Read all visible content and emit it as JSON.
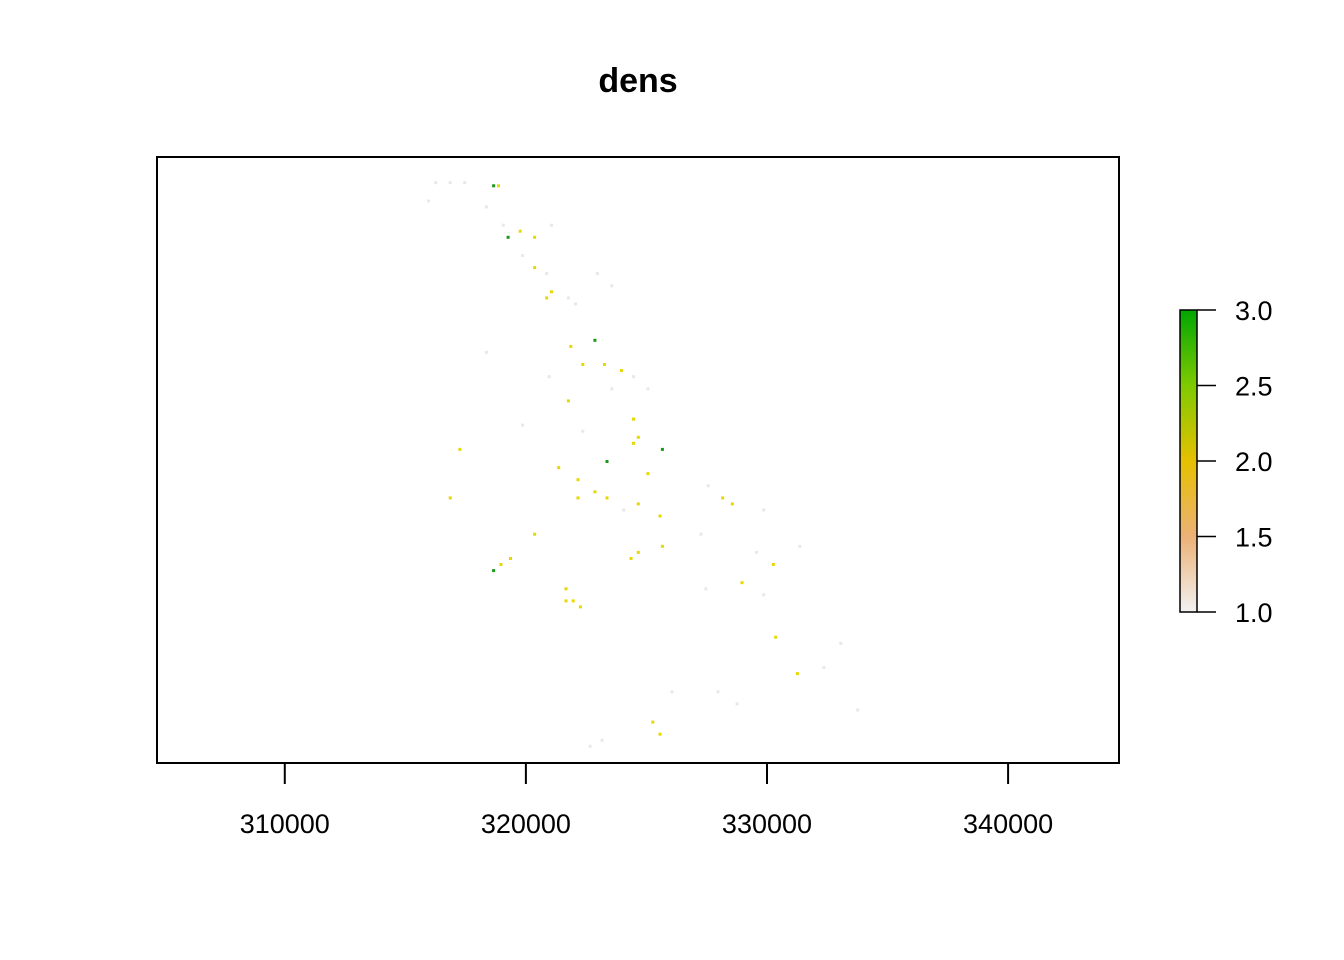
{
  "chart_data": {
    "type": "heatmap",
    "title": "dens",
    "xlabel": "",
    "ylabel": "",
    "xlim": [
      304700,
      344600
    ],
    "x_ticks": [
      310000,
      320000,
      330000,
      340000
    ],
    "x_tick_labels": [
      "310000",
      "320000",
      "330000",
      "340000"
    ],
    "grid": false,
    "legend": "right",
    "colorbar": {
      "min": 1.0,
      "max": 3.0,
      "ticks": [
        1.0,
        1.5,
        2.0,
        2.5,
        3.0
      ],
      "tick_labels": [
        "1.0",
        "1.5",
        "2.0",
        "2.5",
        "3.0"
      ],
      "colors": [
        "#f2f2f2",
        "#ecb176",
        "#e6c000",
        "#7fca00",
        "#00a600"
      ]
    },
    "colors": {
      "low": "#e8e8e8",
      "mid": "#e6d800",
      "high": "#1a9a1a"
    },
    "cells_note": "",
    "cells": [
      [
        316.2,
        0.96,
        1
      ],
      [
        316.8,
        0.96,
        1
      ],
      [
        317.4,
        0.96,
        1
      ],
      [
        315.9,
        0.93,
        1
      ],
      [
        318.6,
        0.955,
        3
      ],
      [
        318.8,
        0.955,
        2
      ],
      [
        318.3,
        0.92,
        1
      ],
      [
        319.0,
        0.89,
        1
      ],
      [
        319.2,
        0.87,
        3
      ],
      [
        319.7,
        0.88,
        2
      ],
      [
        320.3,
        0.87,
        2
      ],
      [
        321.0,
        0.89,
        1
      ],
      [
        319.8,
        0.84,
        1
      ],
      [
        320.3,
        0.82,
        2
      ],
      [
        320.8,
        0.81,
        1
      ],
      [
        321.0,
        0.78,
        2
      ],
      [
        320.8,
        0.77,
        2
      ],
      [
        321.7,
        0.77,
        1
      ],
      [
        322.9,
        0.81,
        1
      ],
      [
        323.5,
        0.79,
        1
      ],
      [
        322.0,
        0.76,
        1
      ],
      [
        322.8,
        0.7,
        3
      ],
      [
        321.8,
        0.69,
        2
      ],
      [
        322.3,
        0.66,
        2
      ],
      [
        323.2,
        0.66,
        2
      ],
      [
        323.9,
        0.65,
        2
      ],
      [
        324.4,
        0.64,
        1
      ],
      [
        325.0,
        0.62,
        1
      ],
      [
        323.5,
        0.62,
        1
      ],
      [
        321.7,
        0.6,
        2
      ],
      [
        322.3,
        0.55,
        1
      ],
      [
        324.4,
        0.57,
        2
      ],
      [
        324.6,
        0.54,
        2
      ],
      [
        324.4,
        0.53,
        2
      ],
      [
        325.6,
        0.52,
        3
      ],
      [
        323.3,
        0.5,
        3
      ],
      [
        325.0,
        0.48,
        2
      ],
      [
        321.3,
        0.49,
        2
      ],
      [
        322.1,
        0.47,
        2
      ],
      [
        322.8,
        0.45,
        2
      ],
      [
        322.1,
        0.44,
        2
      ],
      [
        323.3,
        0.44,
        2
      ],
      [
        324.6,
        0.43,
        2
      ],
      [
        325.5,
        0.41,
        2
      ],
      [
        324.0,
        0.42,
        1
      ],
      [
        328.1,
        0.44,
        2
      ],
      [
        328.5,
        0.43,
        2
      ],
      [
        327.5,
        0.46,
        1
      ],
      [
        329.8,
        0.42,
        1
      ],
      [
        320.3,
        0.38,
        2
      ],
      [
        325.6,
        0.36,
        2
      ],
      [
        324.3,
        0.34,
        2
      ],
      [
        324.6,
        0.35,
        2
      ],
      [
        330.2,
        0.33,
        2
      ],
      [
        329.5,
        0.35,
        1
      ],
      [
        318.6,
        0.32,
        3
      ],
      [
        318.9,
        0.33,
        2
      ],
      [
        319.3,
        0.34,
        2
      ],
      [
        321.6,
        0.29,
        2
      ],
      [
        321.6,
        0.27,
        2
      ],
      [
        321.9,
        0.27,
        2
      ],
      [
        322.2,
        0.26,
        2
      ],
      [
        328.9,
        0.3,
        2
      ],
      [
        327.4,
        0.29,
        1
      ],
      [
        329.8,
        0.28,
        1
      ],
      [
        330.3,
        0.21,
        2
      ],
      [
        331.2,
        0.15,
        2
      ],
      [
        316.8,
        0.44,
        2
      ],
      [
        317.2,
        0.52,
        2
      ],
      [
        326.0,
        0.12,
        1
      ],
      [
        325.2,
        0.07,
        2
      ],
      [
        325.5,
        0.05,
        2
      ],
      [
        327.9,
        0.12,
        1
      ],
      [
        328.7,
        0.1,
        1
      ],
      [
        333.7,
        0.09,
        1
      ],
      [
        323.1,
        0.04,
        1
      ],
      [
        322.6,
        0.03,
        1
      ],
      [
        319.8,
        0.56,
        1
      ],
      [
        318.3,
        0.68,
        1
      ],
      [
        320.9,
        0.64,
        1
      ],
      [
        327.2,
        0.38,
        1
      ],
      [
        331.3,
        0.36,
        1
      ],
      [
        333.0,
        0.2,
        1
      ],
      [
        332.3,
        0.16,
        1
      ]
    ]
  }
}
